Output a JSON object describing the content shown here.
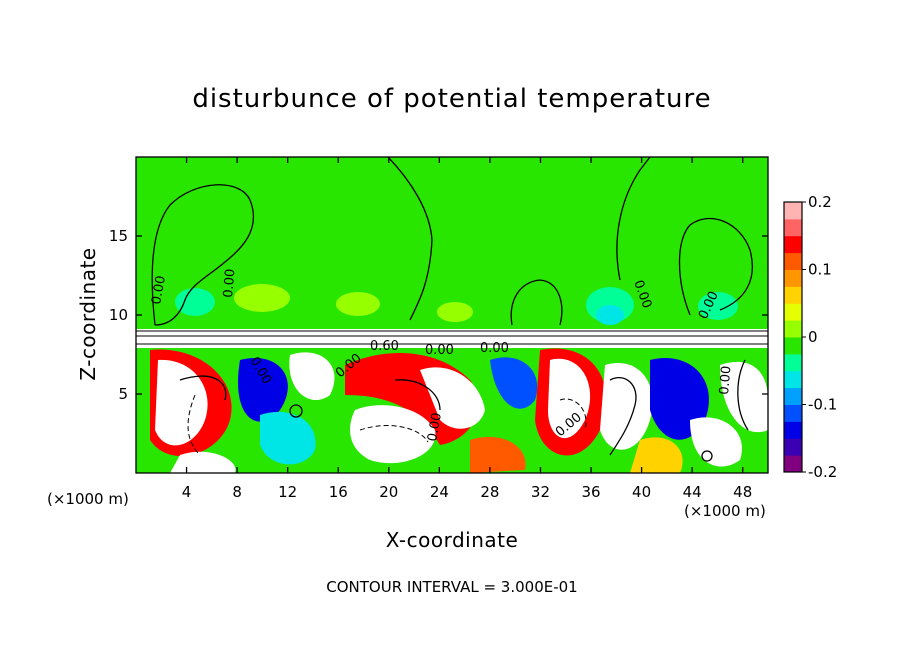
{
  "chart_data": {
    "type": "heatmap",
    "title": "disturbunce of potential temperature",
    "xlabel": "X-coordinate",
    "ylabel": "Z-coordinate",
    "x_unit": "(×1000 m)",
    "footer": "CONTOUR INTERVAL = 3.000E-01",
    "xlim": [
      0,
      50
    ],
    "ylim": [
      0,
      20
    ],
    "x_ticks": [
      "4",
      "8",
      "12",
      "16",
      "20",
      "24",
      "28",
      "32",
      "36",
      "40",
      "44",
      "48"
    ],
    "x_tick_values": [
      4,
      8,
      12,
      16,
      20,
      24,
      28,
      32,
      36,
      40,
      44,
      48
    ],
    "y_ticks": [
      "5",
      "10",
      "15"
    ],
    "y_tick_values": [
      5,
      10,
      15
    ],
    "colorbar": {
      "range": [
        -0.2,
        0.2
      ],
      "tick_labels": [
        "0.2",
        "0.1",
        "0",
        "-0.1",
        "-0.2"
      ],
      "tick_values": [
        0.2,
        0.1,
        0,
        -0.1,
        -0.2
      ],
      "colors": [
        "#800080",
        "#3c00b4",
        "#0000e6",
        "#0050ff",
        "#00a0ff",
        "#00e6e6",
        "#00ff96",
        "#28e600",
        "#96ff00",
        "#e6ff00",
        "#ffd200",
        "#ff9600",
        "#ff5a00",
        "#ff0000",
        "#ff6464",
        "#ffb4b4"
      ]
    },
    "contour_labels": [
      "0.00",
      "0.00",
      "0.00",
      "0.00",
      "0.00",
      "0.60",
      "0.00",
      "0.00",
      "0.00",
      "0.00",
      "0.00",
      "0.00"
    ]
  }
}
